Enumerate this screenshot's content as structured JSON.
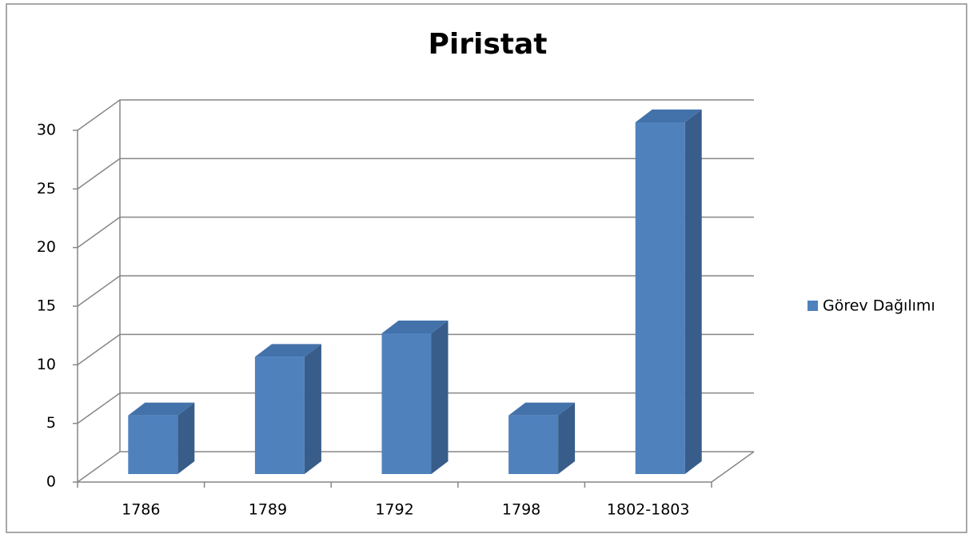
{
  "chart_data": {
    "type": "bar3d",
    "title": "Piristat",
    "categories": [
      "1786",
      "1789",
      "1792",
      "1798",
      "1802-1803"
    ],
    "series": [
      {
        "name": "Görev Dağılımı",
        "color": "#4f81bd",
        "values": [
          5,
          10,
          12,
          5,
          30
        ]
      }
    ],
    "ylim": [
      0,
      30
    ],
    "yticks": [
      0,
      5,
      10,
      15,
      20,
      25,
      30
    ],
    "grid": true,
    "legend": "right"
  }
}
